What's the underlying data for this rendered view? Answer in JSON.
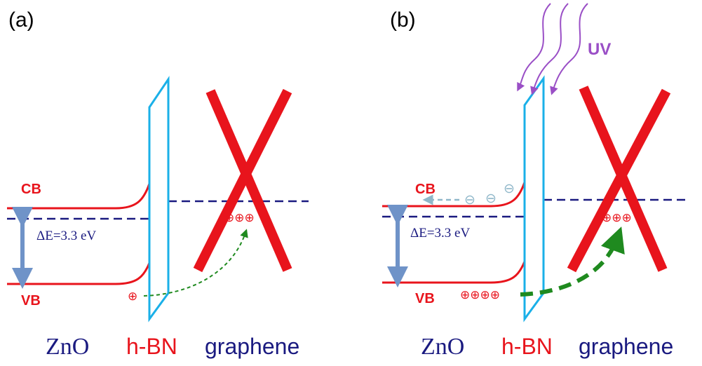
{
  "panels": [
    {
      "label": "(a)",
      "cb": "CB",
      "vb": "VB",
      "gap": "ΔE=3.3 eV",
      "graphene_holes": "⊕⊕⊕",
      "zno_holes": "⊕",
      "materials": [
        "ZnO",
        "h-BN",
        "graphene"
      ]
    },
    {
      "label": "(b)",
      "cb": "CB",
      "vb": "VB",
      "gap": "ΔE=3.3 eV",
      "graphene_holes": "⊕⊕⊕",
      "zno_holes": "⊕⊕⊕⊕",
      "electrons": [
        "⊖",
        "⊖",
        "⊖"
      ],
      "uv": "UV",
      "materials": [
        "ZnO",
        "h-BN",
        "graphene"
      ]
    }
  ]
}
